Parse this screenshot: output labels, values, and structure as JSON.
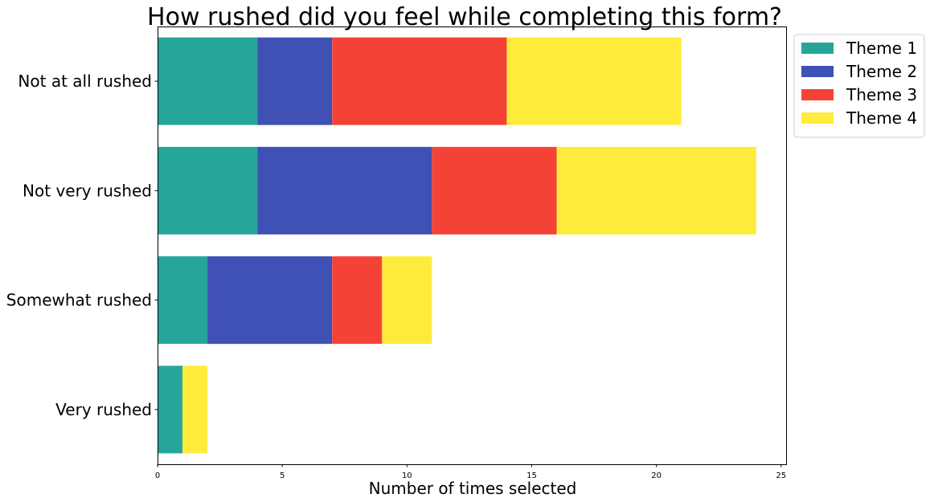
{
  "chart_data": {
    "type": "bar",
    "orientation": "horizontal",
    "stacked": true,
    "title": "How rushed did you feel while completing this form?",
    "xlabel": "Number of times selected",
    "ylabel": "",
    "xlim": [
      0,
      25.2
    ],
    "xticks": [
      0,
      5,
      10,
      15,
      20,
      25
    ],
    "xtick_labels": [
      "0",
      "5",
      "10",
      "15",
      "20",
      "25"
    ],
    "categories": [
      "Not at all rushed",
      "Not very rushed",
      "Somewhat rushed",
      "Very rushed"
    ],
    "series": [
      {
        "name": "Theme 1",
        "color": "#26a69a",
        "values": [
          4,
          4,
          2,
          1
        ]
      },
      {
        "name": "Theme 2",
        "color": "#3f51b5",
        "values": [
          3,
          7,
          5,
          0
        ]
      },
      {
        "name": "Theme 3",
        "color": "#f44336",
        "values": [
          7,
          5,
          2,
          0
        ]
      },
      {
        "name": "Theme 4",
        "color": "#ffeb3b",
        "values": [
          7,
          8,
          2,
          1
        ]
      }
    ],
    "legend_position": "outside top-right",
    "grid": false
  }
}
